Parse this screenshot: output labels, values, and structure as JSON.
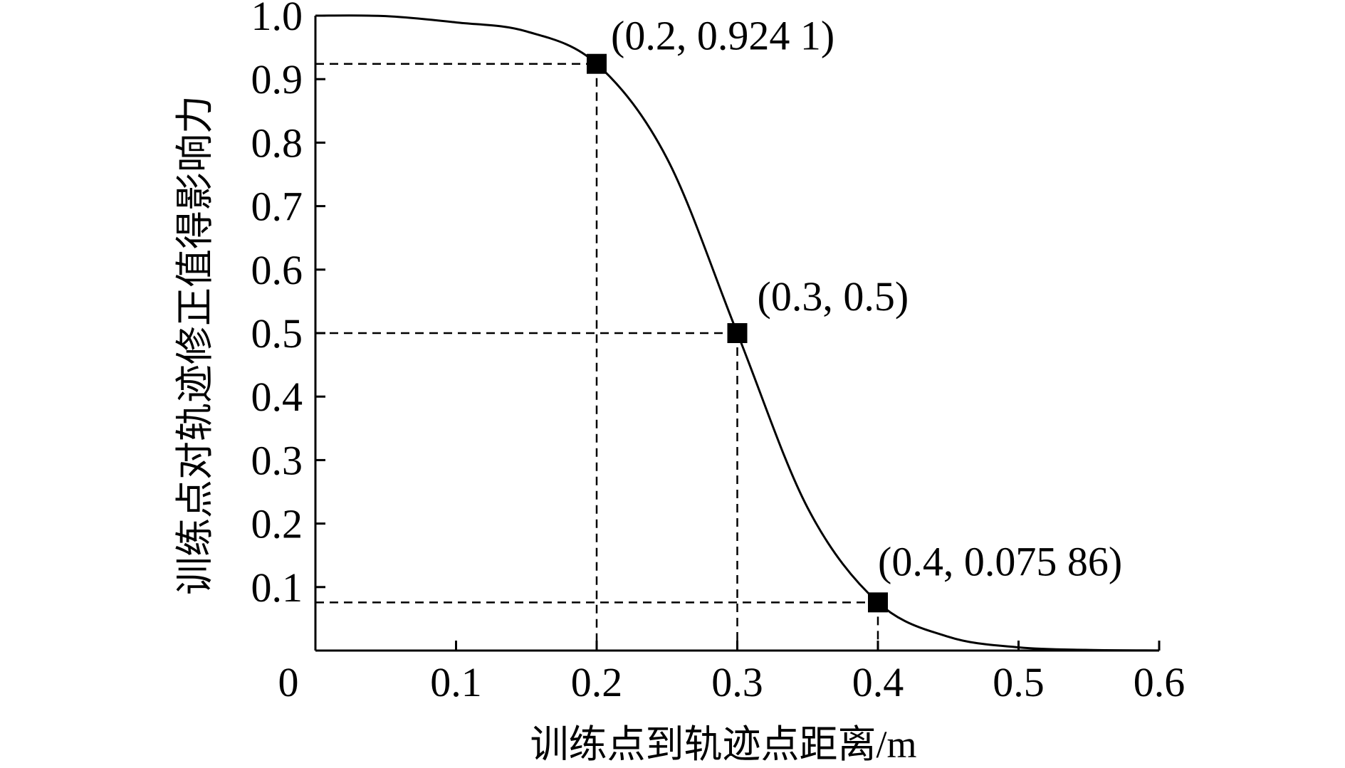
{
  "chart_data": {
    "type": "line",
    "title": "",
    "xlabel": "训练点到轨迹点距离/m",
    "ylabel": "训练点对轨迹修正值得影响力",
    "xlim": [
      0,
      0.6
    ],
    "ylim": [
      0,
      1.0
    ],
    "origin_label": "0",
    "x_ticks": [
      {
        "value": 0.1,
        "label": "0.1"
      },
      {
        "value": 0.2,
        "label": "0.2"
      },
      {
        "value": 0.3,
        "label": "0.3"
      },
      {
        "value": 0.4,
        "label": "0.4"
      },
      {
        "value": 0.5,
        "label": "0.5"
      },
      {
        "value": 0.6,
        "label": "0.6"
      }
    ],
    "y_ticks": [
      {
        "value": 0.1,
        "label": "0.1"
      },
      {
        "value": 0.2,
        "label": "0.2"
      },
      {
        "value": 0.3,
        "label": "0.3"
      },
      {
        "value": 0.4,
        "label": "0.4"
      },
      {
        "value": 0.5,
        "label": "0.5"
      },
      {
        "value": 0.6,
        "label": "0.6"
      },
      {
        "value": 0.7,
        "label": "0.7"
      },
      {
        "value": 0.8,
        "label": "0.8"
      },
      {
        "value": 0.9,
        "label": "0.9"
      },
      {
        "value": 1.0,
        "label": "1.0"
      }
    ],
    "series": [
      {
        "x": [
          0.0,
          0.05,
          0.1,
          0.15,
          0.2,
          0.25,
          0.3,
          0.35,
          0.4,
          0.45,
          0.5,
          0.55,
          0.6
        ],
        "y": [
          1.0,
          0.9993,
          0.9894,
          0.9752,
          0.9241,
          0.7752,
          0.5,
          0.2248,
          0.07586,
          0.0218,
          0.005,
          0.001,
          0.0002
        ],
        "color": "#000000"
      }
    ],
    "highlighted_points": [
      {
        "x": 0.2,
        "y": 0.9241,
        "label": "(0.2, 0.924 1)"
      },
      {
        "x": 0.3,
        "y": 0.5,
        "label": "(0.3, 0.5)"
      },
      {
        "x": 0.4,
        "y": 0.07586,
        "label": "(0.4, 0.075 86)"
      }
    ],
    "grid": false,
    "legend": "none"
  }
}
